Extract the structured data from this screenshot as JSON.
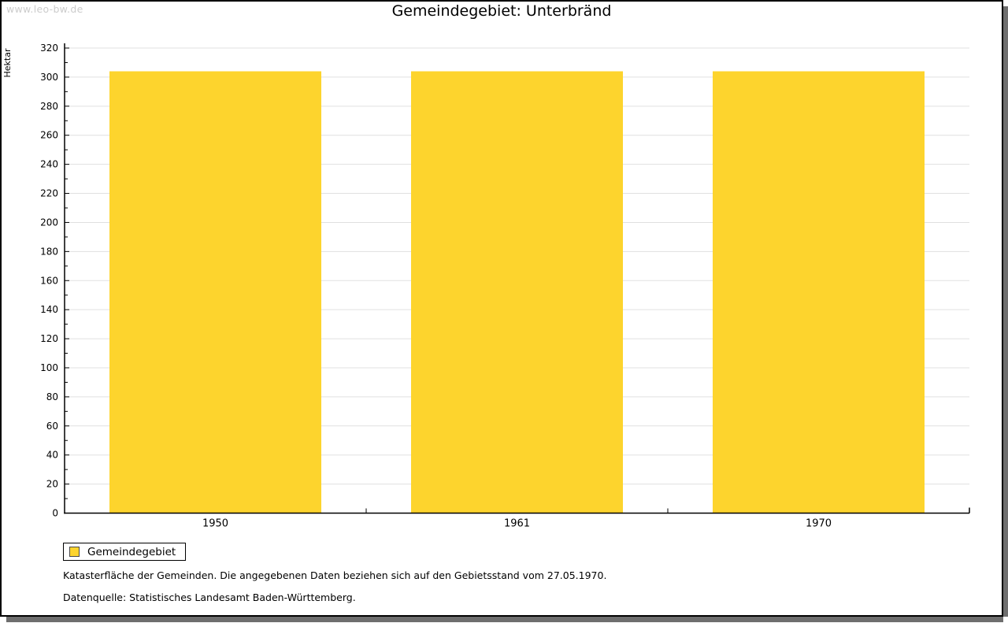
{
  "watermark": "www.leo-bw.de",
  "chart_data": {
    "type": "bar",
    "title": "Gemeindegebiet: Unterbränd",
    "ylabel": "Hektar",
    "categories": [
      "1950",
      "1961",
      "1970"
    ],
    "series": [
      {
        "name": "Gemeindegebiet",
        "color": "#FDD42D",
        "values": [
          304,
          304,
          304
        ]
      }
    ],
    "ylim": [
      0,
      320
    ],
    "ytick_step": 20,
    "yminor_step": 10,
    "grid": true,
    "gridline_color": "#e0e0e0",
    "axis_color": "#000000",
    "legend_position": "bottom-left"
  },
  "footer": {
    "line1": "Katasterfläche der Gemeinden. Die angegebenen Daten beziehen sich auf den Gebietsstand vom 27.05.1970.",
    "line2": "Datenquelle: Statistisches Landesamt Baden-Württemberg."
  }
}
